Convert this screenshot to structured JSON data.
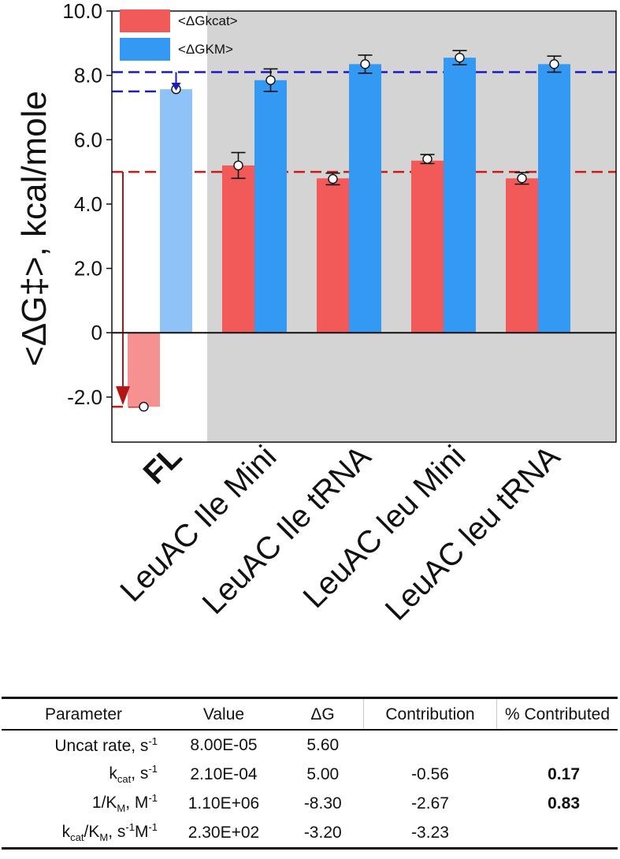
{
  "chart_data": {
    "type": "bar",
    "ylabel": "<ΔG‡>, kcal/mole",
    "ylim": [
      -3.4,
      10.0
    ],
    "yticks": [
      {
        "value": 10.0,
        "label": "10.0"
      },
      {
        "value": 8.0,
        "label": "8.0"
      },
      {
        "value": 6.0,
        "label": "6.0"
      },
      {
        "value": 4.0,
        "label": "4.0"
      },
      {
        "value": 2.0,
        "label": "2.0"
      },
      {
        "value": 0,
        "label": "0"
      },
      {
        "value": -2.0,
        "label": "-2.0"
      }
    ],
    "categories": [
      "FL",
      "LeuAC Ile Mini",
      "LeuAC Ile  tRNA",
      "LeuAC leu Mini",
      "LeuAC leu  tRNA"
    ],
    "series": [
      {
        "name": "<ΔGkcat>",
        "color": "#f25a5a",
        "light_color": "#f59191",
        "values": [
          -2.3,
          5.2,
          4.8,
          5.35,
          4.8
        ],
        "points": [
          -2.3,
          5.2,
          4.78,
          5.4,
          4.8
        ],
        "errors": [
          0,
          0.4,
          0.18,
          0.14,
          0.18
        ]
      },
      {
        "name": "<ΔGKM>",
        "color": "#3399f2",
        "light_color": "#8fc3f7",
        "values": [
          7.57,
          7.85,
          8.35,
          8.55,
          8.35
        ],
        "points": [
          7.57,
          7.85,
          8.35,
          8.55,
          8.35
        ],
        "errors": [
          0,
          0.35,
          0.28,
          0.22,
          0.25
        ]
      }
    ],
    "reference_lines": [
      {
        "value": 8.1,
        "color": "#1a1acc",
        "style": "dashed"
      },
      {
        "value": 7.5,
        "color": "#1a1acc",
        "style": "dashed"
      },
      {
        "value": 5.0,
        "color": "#cc1a1a",
        "style": "dashed"
      },
      {
        "value": -2.3,
        "color": "#cc1a1a",
        "style": "dashed"
      }
    ],
    "legend_placement": "top-left",
    "shaded_region": "from second category to the right",
    "grid": false
  },
  "table": {
    "headers": [
      "Parameter",
      "Value",
      "ΔG",
      "Contribution",
      "% Contributed"
    ],
    "rows": [
      {
        "param_main": "Uncat rate, s",
        "param_sup": "-1",
        "value": "8.00E-05",
        "dg": "5.60",
        "contribution": "",
        "pct": ""
      },
      {
        "param_main": "k",
        "param_sub": "cat",
        "param_rest": ", s",
        "param_sup": "-1",
        "value": "2.10E-04",
        "dg": "5.00",
        "contribution": "-0.56",
        "pct": "0.17"
      },
      {
        "param_main": "1/K",
        "param_sub": "M",
        "param_rest": ", M",
        "param_sup": "-1",
        "value": "1.10E+06",
        "dg": "-8.30",
        "contribution": "-2.67",
        "pct": "0.83"
      },
      {
        "param_main": "k",
        "param_sub": "cat",
        "param_rest": "/K",
        "param_sub2": "M",
        "param_rest2": ", s",
        "param_sup": "-1",
        "param_rest3": "M",
        "param_sup2": "-1",
        "value": "2.30E+02",
        "dg": "-3.20",
        "contribution": "-3.23",
        "pct": ""
      }
    ]
  }
}
